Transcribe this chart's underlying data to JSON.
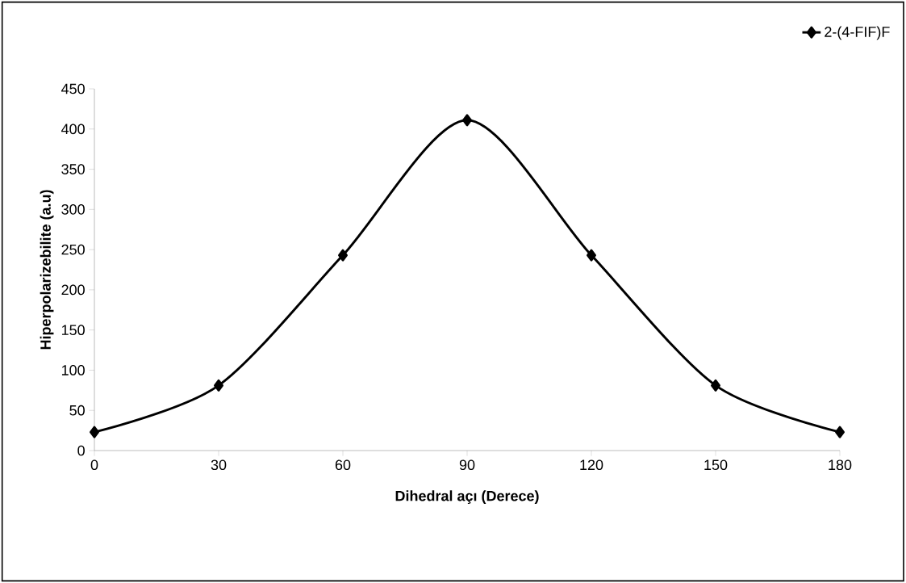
{
  "chart_data": {
    "type": "line",
    "xlabel": "Dihedral açı (Derece)",
    "ylabel": "Hiperpolarizebilite (a.u)",
    "x": [
      0,
      30,
      60,
      90,
      120,
      150,
      180
    ],
    "series": [
      {
        "name": "2-(4-FIF)F",
        "color": "#000000",
        "values": [
          23,
          81,
          243,
          411,
          243,
          81,
          23
        ]
      }
    ],
    "xlim": [
      0,
      180
    ],
    "xticks": [
      0,
      30,
      60,
      90,
      120,
      150,
      180
    ],
    "ylim": [
      0,
      450
    ],
    "yticks": [
      0,
      50,
      100,
      150,
      200,
      250,
      300,
      350,
      400,
      450
    ],
    "grid": false,
    "legend": "top right",
    "marker": "diamond",
    "line_style": "solid"
  }
}
